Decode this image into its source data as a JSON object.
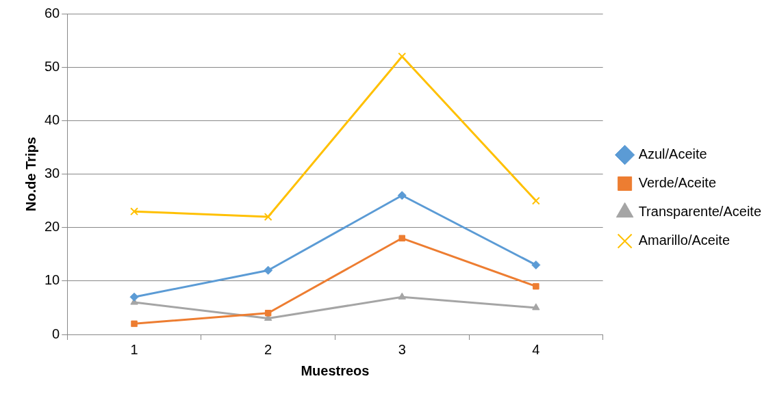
{
  "chart_data": {
    "type": "line",
    "xlabel": "Muestreos",
    "ylabel": "No.de Trips",
    "categories": [
      "1",
      "2",
      "3",
      "4"
    ],
    "ylim": [
      0,
      60
    ],
    "yticks": [
      0,
      10,
      20,
      30,
      40,
      50,
      60
    ],
    "grid": "y",
    "legend": "right",
    "series": [
      {
        "name": "Azul/Aceite",
        "color": "#5b9bd5",
        "marker": "diamond",
        "values": [
          7,
          12,
          26,
          13
        ]
      },
      {
        "name": "Verde/Aceite",
        "color": "#ed7d31",
        "marker": "square",
        "values": [
          2,
          4,
          18,
          9
        ]
      },
      {
        "name": "Transparente/Aceite",
        "color": "#a5a5a5",
        "marker": "triangle",
        "values": [
          6,
          3,
          7,
          5
        ]
      },
      {
        "name": "Amarillo/Aceite",
        "color": "#ffc000",
        "marker": "cross",
        "values": [
          23,
          22,
          52,
          25
        ]
      }
    ]
  }
}
